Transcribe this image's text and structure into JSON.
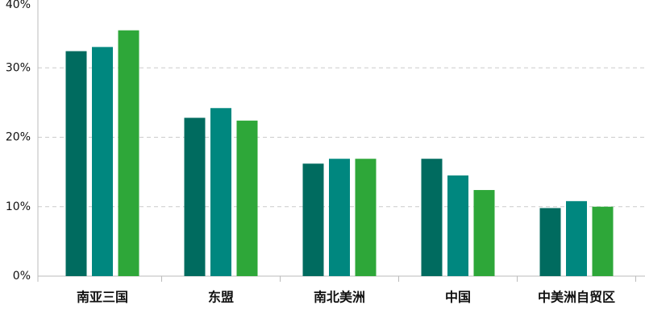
{
  "chart_data": {
    "type": "bar",
    "categories": [
      "南亚三国",
      "东盟",
      "南北美洲",
      "中国",
      "中美洲自贸区"
    ],
    "series": [
      {
        "color": "#006b5f",
        "values": [
          32.4,
          22.8,
          16.2,
          16.9,
          9.8
        ]
      },
      {
        "color": "#00877f",
        "values": [
          33.0,
          24.2,
          16.9,
          14.5,
          10.8
        ]
      },
      {
        "color": "#2ea739",
        "values": [
          35.4,
          22.4,
          16.9,
          12.4,
          10.0
        ]
      }
    ],
    "ylim": [
      0,
      40
    ],
    "yticks": [
      {
        "value": 0,
        "label": "0%"
      },
      {
        "value": 10,
        "label": "10%"
      },
      {
        "value": 20,
        "label": "20%"
      },
      {
        "value": 30,
        "label": "30%"
      },
      {
        "value": 40,
        "label": "40%"
      }
    ],
    "grid": true
  }
}
